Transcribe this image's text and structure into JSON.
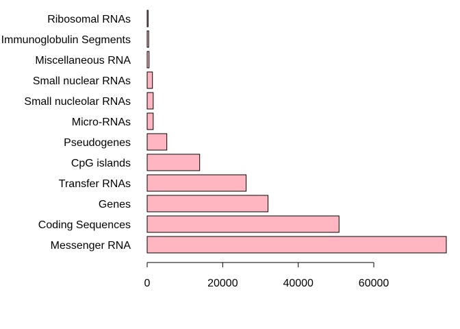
{
  "chart_data": {
    "type": "bar",
    "orientation": "horizontal",
    "categories": [
      "Messenger RNA",
      "Coding Sequences",
      "Genes",
      "Transfer RNAs",
      "CpG islands",
      "Pseudogenes",
      "Micro-RNAs",
      "Small nucleolar RNAs",
      "Small nuclear RNAs",
      "Miscellaneous RNA",
      "Immunoglobulin Segments",
      "Ribosomal RNAs"
    ],
    "values": [
      79200,
      50800,
      32000,
      26200,
      13900,
      5200,
      1600,
      1600,
      1400,
      500,
      400,
      250
    ],
    "xlim": [
      0,
      79200
    ],
    "xticks": [
      0,
      20000,
      40000,
      60000
    ],
    "xtick_labels": [
      "0",
      "20000",
      "40000",
      "60000"
    ],
    "title": "",
    "xlabel": "",
    "ylabel": "",
    "grid": false,
    "bar_color": "#ffb6c1",
    "edge_color": "#000000"
  }
}
